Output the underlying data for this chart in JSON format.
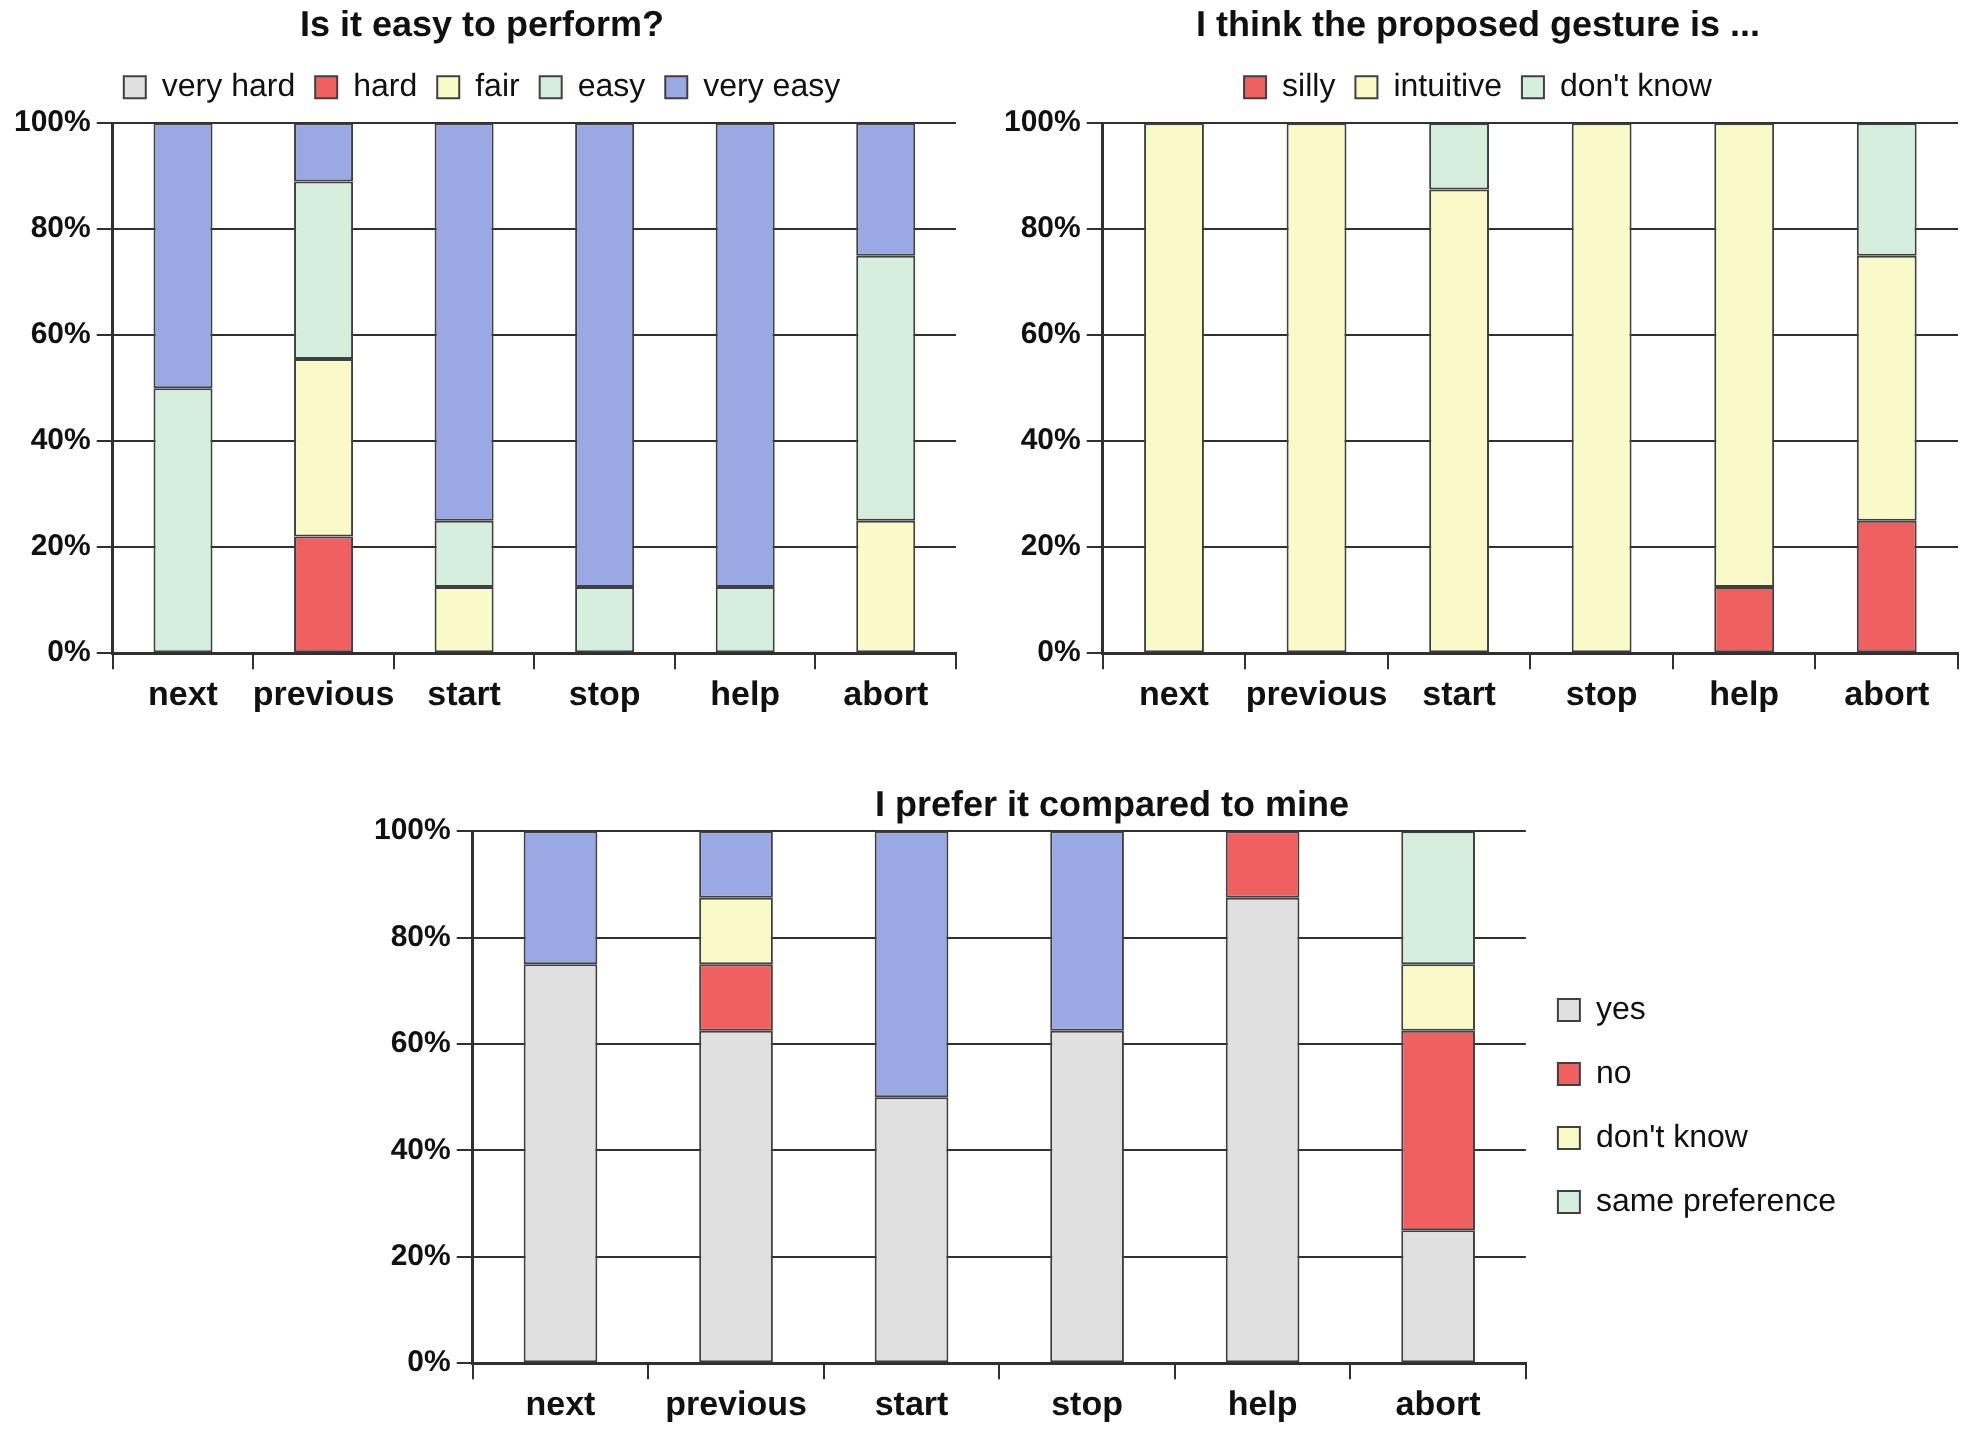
{
  "chart_data": [
    {
      "type": "bar",
      "title": "Is it easy to perform?",
      "categories": [
        "next",
        "previous",
        "start",
        "stop",
        "help",
        "abort"
      ],
      "stacked": true,
      "ylim": [
        0,
        100
      ],
      "yticks": [
        {
          "value": 0,
          "label": "0%"
        },
        {
          "value": 20,
          "label": "20%"
        },
        {
          "value": 40,
          "label": "40%"
        },
        {
          "value": 60,
          "label": "60%"
        },
        {
          "value": 80,
          "label": "80%"
        },
        {
          "value": 100,
          "label": "100%"
        }
      ],
      "grid": "y",
      "legend": "top",
      "series": [
        {
          "name": "very hard",
          "color": "#e0e0e0",
          "values": [
            0,
            0,
            0,
            0,
            0,
            0
          ]
        },
        {
          "name": "hard",
          "color": "#f06060",
          "values": [
            0,
            22,
            0,
            0,
            0,
            0
          ]
        },
        {
          "name": "fair",
          "color": "#fafac8",
          "values": [
            0,
            33.5,
            12.5,
            0,
            0,
            25
          ]
        },
        {
          "name": "easy",
          "color": "#d6eedd",
          "values": [
            50,
            33.5,
            12.5,
            12.5,
            12.5,
            50
          ]
        },
        {
          "name": "very easy",
          "color": "#9aa8e4",
          "values": [
            50,
            11,
            75,
            87.5,
            87.5,
            25
          ]
        }
      ]
    },
    {
      "type": "bar",
      "title": "I think the proposed gesture is ...",
      "categories": [
        "next",
        "previous",
        "start",
        "stop",
        "help",
        "abort"
      ],
      "stacked": true,
      "ylim": [
        0,
        100
      ],
      "yticks": [
        {
          "value": 0,
          "label": "0%"
        },
        {
          "value": 20,
          "label": "20%"
        },
        {
          "value": 40,
          "label": "40%"
        },
        {
          "value": 60,
          "label": "60%"
        },
        {
          "value": 80,
          "label": "80%"
        },
        {
          "value": 100,
          "label": "100%"
        }
      ],
      "grid": "y",
      "legend": "top",
      "series": [
        {
          "name": "silly",
          "color": "#f06060",
          "values": [
            0,
            0,
            0,
            0,
            12.5,
            25
          ]
        },
        {
          "name": "intuitive",
          "color": "#fafac8",
          "values": [
            100,
            100,
            87.5,
            100,
            87.5,
            50
          ]
        },
        {
          "name": "don't know",
          "color": "#d6eedd",
          "values": [
            0,
            0,
            12.5,
            0,
            0,
            25
          ]
        }
      ]
    },
    {
      "type": "bar",
      "title": "I prefer it compared to mine",
      "categories": [
        "next",
        "previous",
        "start",
        "stop",
        "help",
        "abort"
      ],
      "stacked": true,
      "ylim": [
        0,
        100
      ],
      "yticks": [
        {
          "value": 0,
          "label": "0%"
        },
        {
          "value": 20,
          "label": "20%"
        },
        {
          "value": 40,
          "label": "40%"
        },
        {
          "value": 60,
          "label": "60%"
        },
        {
          "value": 80,
          "label": "80%"
        },
        {
          "value": 100,
          "label": "100%"
        }
      ],
      "grid": "y",
      "legend": "right",
      "series": [
        {
          "name": "yes",
          "color": "#e0e0e0",
          "values": [
            75,
            62.5,
            50,
            62.5,
            87.5,
            25
          ]
        },
        {
          "name": "no",
          "color": "#f06060",
          "values": [
            0,
            12.5,
            0,
            0,
            12.5,
            37.5
          ]
        },
        {
          "name": "don't know",
          "color": "#fafac8",
          "values": [
            0,
            12.5,
            0,
            0,
            0,
            12.5
          ]
        },
        {
          "name": "same preference",
          "color": "#d6eedd",
          "values": [
            0,
            0,
            0,
            0,
            0,
            25
          ]
        },
        {
          "color": "#9aa8e4",
          "values": [
            25,
            12.5,
            50,
            37.5,
            0,
            0
          ]
        }
      ]
    }
  ]
}
